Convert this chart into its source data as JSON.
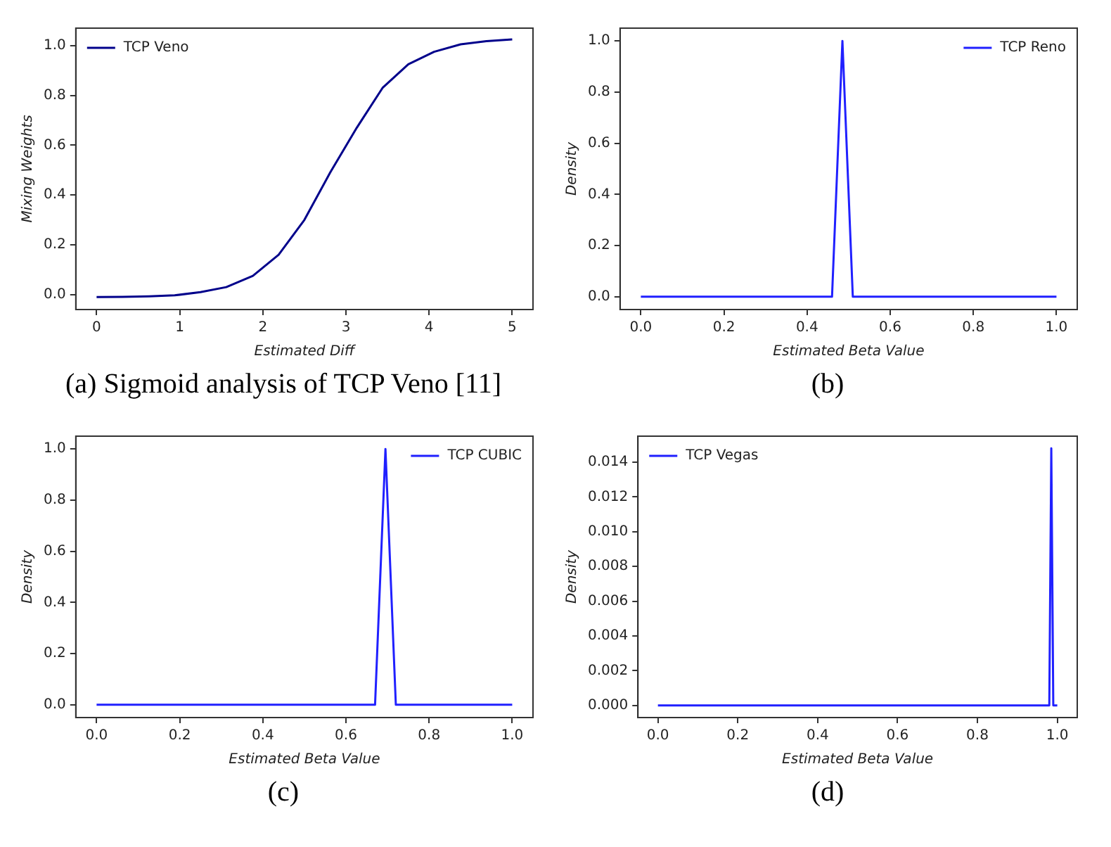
{
  "chart_data": [
    {
      "type": "line",
      "xlabel": "Estimated Diff",
      "ylabel": "Mixing Weights",
      "annotations": [
        "(a) Sigmoid analysis of TCP Veno [11]"
      ],
      "legend": "top left",
      "xlim": [
        -0.25,
        5.25
      ],
      "ylim": [
        -0.06,
        1.07
      ],
      "xticks": [
        0,
        1,
        2,
        3,
        4,
        5
      ],
      "yticks": [
        {
          "value": 0,
          "label": "0.0"
        },
        {
          "value": 0.2,
          "label": "0.2"
        },
        {
          "value": 0.4,
          "label": "0.4"
        },
        {
          "value": 0.6,
          "label": "0.6"
        },
        {
          "value": 0.8,
          "label": "0.8"
        },
        {
          "value": 1,
          "label": "1.0"
        }
      ],
      "series": [
        {
          "name": "TCP Veno",
          "color": "#00008b",
          "x": [
            0,
            0.31,
            0.63,
            0.94,
            1.25,
            1.56,
            1.88,
            2.19,
            2.5,
            2.81,
            3.13,
            3.44,
            3.75,
            4.06,
            4.38,
            4.69,
            5
          ],
          "values": [
            -0.01,
            -0.009,
            -0.007,
            -0.003,
            0.01,
            0.03,
            0.075,
            0.16,
            0.3,
            0.49,
            0.67,
            0.83,
            0.925,
            0.975,
            1.005,
            1.018,
            1.025
          ]
        }
      ]
    },
    {
      "type": "line",
      "xlabel": "Estimated Beta Value",
      "ylabel": "Density",
      "annotations": [
        "(b)"
      ],
      "legend": "top right",
      "xlim": [
        -0.05,
        1.05
      ],
      "ylim": [
        -0.05,
        1.05
      ],
      "xticks": [
        {
          "value": 0,
          "label": "0.0"
        },
        {
          "value": 0.2,
          "label": "0.2"
        },
        {
          "value": 0.4,
          "label": "0.4"
        },
        {
          "value": 0.6,
          "label": "0.6"
        },
        {
          "value": 0.8,
          "label": "0.8"
        },
        {
          "value": 1,
          "label": "1.0"
        }
      ],
      "yticks": [
        {
          "value": 0,
          "label": "0.0"
        },
        {
          "value": 0.2,
          "label": "0.2"
        },
        {
          "value": 0.4,
          "label": "0.4"
        },
        {
          "value": 0.6,
          "label": "0.6"
        },
        {
          "value": 0.8,
          "label": "0.8"
        },
        {
          "value": 1,
          "label": "1.0"
        }
      ],
      "series": [
        {
          "name": "TCP Reno",
          "color": "#2020ff",
          "x": [
            0,
            0.46,
            0.485,
            0.51,
            1
          ],
          "values": [
            0,
            0,
            1,
            0,
            0
          ]
        }
      ]
    },
    {
      "type": "line",
      "xlabel": "Estimated Beta Value",
      "ylabel": "Density",
      "annotations": [
        "(c)"
      ],
      "legend": "top right",
      "xlim": [
        -0.05,
        1.05
      ],
      "ylim": [
        -0.05,
        1.05
      ],
      "xticks": [
        {
          "value": 0,
          "label": "0.0"
        },
        {
          "value": 0.2,
          "label": "0.2"
        },
        {
          "value": 0.4,
          "label": "0.4"
        },
        {
          "value": 0.6,
          "label": "0.6"
        },
        {
          "value": 0.8,
          "label": "0.8"
        },
        {
          "value": 1,
          "label": "1.0"
        }
      ],
      "yticks": [
        {
          "value": 0,
          "label": "0.0"
        },
        {
          "value": 0.2,
          "label": "0.2"
        },
        {
          "value": 0.4,
          "label": "0.4"
        },
        {
          "value": 0.6,
          "label": "0.6"
        },
        {
          "value": 0.8,
          "label": "0.8"
        },
        {
          "value": 1,
          "label": "1.0"
        }
      ],
      "series": [
        {
          "name": "TCP CUBIC",
          "color": "#2020ff",
          "x": [
            0,
            0.67,
            0.695,
            0.72,
            1
          ],
          "values": [
            0,
            0,
            1,
            0,
            0
          ]
        }
      ]
    },
    {
      "type": "line",
      "xlabel": "Estimated Beta Value",
      "ylabel": "Density",
      "annotations": [
        "(d)"
      ],
      "legend": "top left",
      "xlim": [
        -0.05,
        1.05
      ],
      "ylim": [
        -0.0007,
        0.0155
      ],
      "xticks": [
        {
          "value": 0,
          "label": "0.0"
        },
        {
          "value": 0.2,
          "label": "0.2"
        },
        {
          "value": 0.4,
          "label": "0.4"
        },
        {
          "value": 0.6,
          "label": "0.6"
        },
        {
          "value": 0.8,
          "label": "0.8"
        },
        {
          "value": 1,
          "label": "1.0"
        }
      ],
      "yticks": [
        {
          "value": 0,
          "label": "0.000"
        },
        {
          "value": 0.002,
          "label": "0.002"
        },
        {
          "value": 0.004,
          "label": "0.004"
        },
        {
          "value": 0.006,
          "label": "0.006"
        },
        {
          "value": 0.008,
          "label": "0.008"
        },
        {
          "value": 0.01,
          "label": "0.010"
        },
        {
          "value": 0.012,
          "label": "0.012"
        },
        {
          "value": 0.014,
          "label": "0.014"
        }
      ],
      "series": [
        {
          "name": "TCP Vegas",
          "color": "#2020ff",
          "x": [
            0,
            0.98,
            0.985,
            0.99,
            1
          ],
          "values": [
            0,
            0,
            0.0148,
            0,
            0
          ]
        }
      ]
    }
  ]
}
